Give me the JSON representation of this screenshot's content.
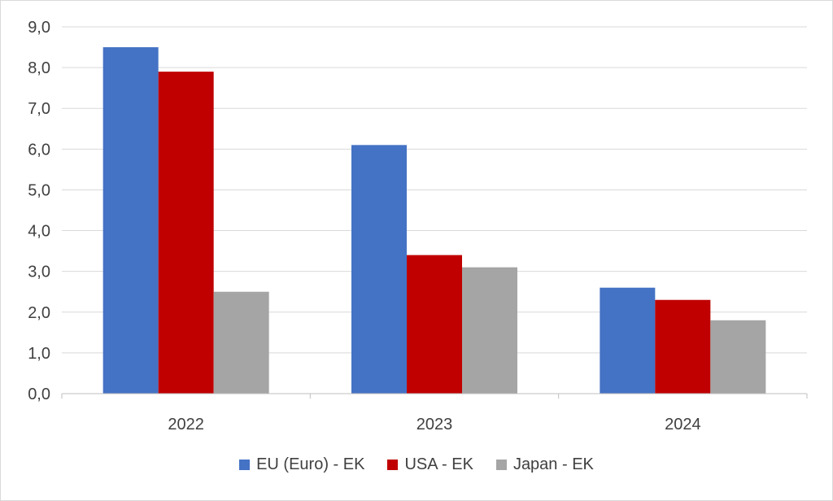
{
  "chart_data": {
    "type": "bar",
    "title": "",
    "xlabel": "",
    "ylabel": "",
    "categories": [
      "2022",
      "2023",
      "2024"
    ],
    "series": [
      {
        "name": "EU (Euro) - EK",
        "color": "#4472c4",
        "values": [
          8.5,
          6.1,
          2.6
        ]
      },
      {
        "name": "USA - EK",
        "color": "#c00000",
        "values": [
          7.9,
          3.4,
          2.3
        ]
      },
      {
        "name": "Japan - EK",
        "color": "#a5a5a5",
        "values": [
          2.5,
          3.1,
          1.8
        ]
      }
    ],
    "ylim": [
      0,
      9
    ],
    "yticks": [
      "0,0",
      "1,0",
      "2,0",
      "3,0",
      "4,0",
      "5,0",
      "6,0",
      "7,0",
      "8,0",
      "9,0"
    ],
    "grid": true,
    "legend_position": "bottom"
  }
}
